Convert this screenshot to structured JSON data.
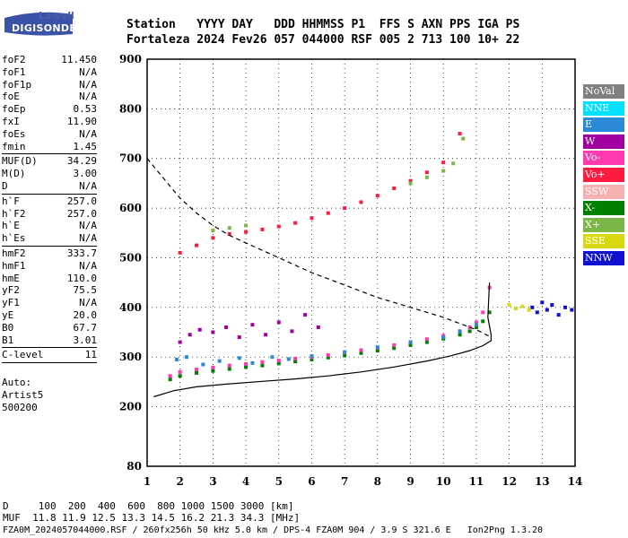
{
  "logo": {
    "top": "Lowell",
    "main": "DIGISONDE"
  },
  "header": {
    "line1": "Station   YYYY DAY   DDD HHMMSS P1  FFS S AXN PPS IGA PS",
    "line2": "Fortaleza 2024 Fev26 057 044000 RSF 005 2 713 100 10+ 22"
  },
  "params": [
    {
      "k": "foF2",
      "v": "11.450"
    },
    {
      "k": "foF1",
      "v": "N/A"
    },
    {
      "k": "foF1p",
      "v": "N/A"
    },
    {
      "k": "foE",
      "v": "N/A"
    },
    {
      "k": "foEp",
      "v": "0.53"
    },
    {
      "k": "fxI",
      "v": "11.90"
    },
    {
      "k": "foEs",
      "v": "N/A"
    },
    {
      "k": "fmin",
      "v": "1.45"
    },
    {
      "k": "MUF(D)",
      "v": "34.29"
    },
    {
      "k": "M(D)",
      "v": "3.00"
    },
    {
      "k": "D",
      "v": "N/A"
    },
    {
      "k": "h`F",
      "v": "257.0"
    },
    {
      "k": "h`F2",
      "v": "257.0"
    },
    {
      "k": "h`E",
      "v": "N/A"
    },
    {
      "k": "h`Es",
      "v": "N/A"
    },
    {
      "k": "hmF2",
      "v": "333.7"
    },
    {
      "k": "hmF1",
      "v": "N/A"
    },
    {
      "k": "hmE",
      "v": "110.0"
    },
    {
      "k": "yF2",
      "v": "75.5"
    },
    {
      "k": "yF1",
      "v": "N/A"
    },
    {
      "k": "yE",
      "v": "20.0"
    },
    {
      "k": "B0",
      "v": "67.7"
    },
    {
      "k": "B1",
      "v": "3.01"
    },
    {
      "k": "C-level",
      "v": "11"
    }
  ],
  "autoscale": {
    "line1": "Auto:",
    "line2": "Artist5",
    "line3": "500200"
  },
  "footer": {
    "d_line": "D     100  200  400  600  800 1000 1500 3000 [km]",
    "muf_line": "MUF  11.8 11.9 12.5 13.3 14.5 16.2 21.3 34.3 [MHz]",
    "info_line": "FZA0M_2024057044000.RSF / 260fx256h 50 kHz 5.0 km / DPS-4 FZA0M 904 / 3.9 S 321.6 E   Ion2Png 1.3.20"
  },
  "legend": [
    {
      "label": "NoVal",
      "color": "#808080"
    },
    {
      "label": "NNE",
      "color": "#00e0ff"
    },
    {
      "label": "E",
      "color": "#2a8ad8"
    },
    {
      "label": "W",
      "color": "#a000a0"
    },
    {
      "label": "Vo-",
      "color": "#ff3ab0"
    },
    {
      "label": "Vo+",
      "color": "#ff1a40"
    },
    {
      "label": "SSW",
      "color": "#f5b0b0"
    },
    {
      "label": "X-",
      "color": "#008000"
    },
    {
      "label": "X+",
      "color": "#7ab648"
    },
    {
      "label": "SSE",
      "color": "#d8d810"
    },
    {
      "label": "NNW",
      "color": "#1010d0"
    }
  ],
  "chart_data": {
    "type": "scatter",
    "title": "",
    "xlabel": "",
    "ylabel": "",
    "xlim": [
      1,
      14
    ],
    "ylim": [
      80,
      900
    ],
    "xticks": [
      1,
      2,
      3,
      4,
      5,
      6,
      7,
      8,
      9,
      10,
      11,
      12,
      13,
      14
    ],
    "yticks": [
      80,
      200,
      300,
      400,
      500,
      600,
      700,
      800,
      900
    ],
    "grid": true,
    "legend_position": "right",
    "series": [
      {
        "name": "X-",
        "color": "#008000",
        "x": [
          1.7,
          2.0,
          2.5,
          3.0,
          3.5,
          4.0,
          4.5,
          5.0,
          5.5,
          6.0,
          6.5,
          7.0,
          7.5,
          8.0,
          8.5,
          9.0,
          9.5,
          10.0,
          10.5,
          10.8,
          11.0,
          11.2,
          11.4
        ],
        "y": [
          255,
          262,
          268,
          272,
          276,
          280,
          283,
          287,
          291,
          295,
          299,
          303,
          308,
          313,
          318,
          324,
          330,
          337,
          345,
          352,
          360,
          372,
          390
        ]
      },
      {
        "name": "Vo-",
        "color": "#ff3ab0",
        "x": [
          1.7,
          2.0,
          2.5,
          3.0,
          3.5,
          4.0,
          4.5,
          5.0,
          5.5,
          6.0,
          6.5,
          7.0,
          7.5,
          8.0,
          8.5,
          9.0,
          9.5,
          10.0,
          10.5,
          10.8,
          11.0,
          11.2,
          11.4
        ],
        "y": [
          262,
          270,
          275,
          279,
          283,
          286,
          290,
          293,
          297,
          300,
          304,
          309,
          314,
          319,
          324,
          330,
          336,
          343,
          352,
          360,
          370,
          390,
          440
        ]
      },
      {
        "name": "W",
        "color": "#a000a0",
        "x": [
          2.0,
          2.3,
          2.6,
          3.0,
          3.4,
          3.8,
          4.2,
          4.6,
          5.0,
          5.4,
          5.8,
          6.2
        ],
        "y": [
          330,
          345,
          355,
          350,
          360,
          340,
          365,
          345,
          370,
          352,
          385,
          360
        ]
      },
      {
        "name": "Vo+",
        "color": "#ff1a40",
        "x": [
          2.0,
          2.5,
          3.0,
          3.5,
          4.0,
          4.5,
          5.0,
          5.5,
          6.0,
          6.5,
          7.0,
          7.5,
          8.0,
          8.5,
          9.0,
          9.5,
          10.0,
          10.5
        ],
        "y": [
          510,
          525,
          540,
          548,
          552,
          557,
          563,
          570,
          580,
          590,
          600,
          612,
          625,
          640,
          655,
          672,
          692,
          750
        ]
      },
      {
        "name": "E",
        "color": "#2a8ad8",
        "x": [
          1.9,
          2.2,
          2.7,
          3.2,
          3.8,
          4.2,
          4.8,
          5.3,
          6.0,
          7.0,
          8.0,
          9.0,
          10.0,
          10.5,
          11.0
        ],
        "y": [
          295,
          300,
          285,
          292,
          298,
          288,
          300,
          296,
          302,
          310,
          320,
          330,
          340,
          352,
          365
        ]
      },
      {
        "name": "NNW",
        "color": "#1010d0",
        "x": [
          12.7,
          12.85,
          13.0,
          13.15,
          13.3,
          13.5,
          13.7,
          13.9
        ],
        "y": [
          400,
          390,
          410,
          395,
          405,
          385,
          400,
          395
        ]
      },
      {
        "name": "SSE",
        "color": "#d8d810",
        "x": [
          12.0,
          12.2,
          12.4,
          12.6
        ],
        "y": [
          405,
          398,
          402,
          395
        ]
      },
      {
        "name": "X+",
        "color": "#7ab648",
        "x": [
          3.0,
          3.5,
          4.0,
          9.0,
          9.5,
          10.0,
          10.3,
          10.6
        ],
        "y": [
          555,
          560,
          565,
          650,
          662,
          675,
          690,
          740
        ]
      }
    ],
    "curves": [
      {
        "name": "profile",
        "style": "solid",
        "x": [
          1.2,
          1.8,
          2.5,
          3.5,
          4.5,
          5.5,
          6.5,
          7.5,
          8.5,
          9.5,
          10.2,
          10.8,
          11.2,
          11.45,
          11.45,
          11.35,
          11.4
        ],
        "y": [
          220,
          232,
          240,
          246,
          251,
          256,
          262,
          270,
          280,
          292,
          302,
          313,
          323,
          333,
          345,
          380,
          450
        ]
      },
      {
        "name": "MUF",
        "style": "dashed",
        "x": [
          1.0,
          1.5,
          2.0,
          2.5,
          3.0,
          3.5,
          4.0,
          4.5,
          5.0,
          6.0,
          7.0,
          8.0,
          9.0,
          10.0,
          11.0,
          11.45
        ],
        "y": [
          700,
          660,
          620,
          590,
          565,
          545,
          530,
          515,
          500,
          470,
          445,
          420,
          400,
          380,
          355,
          340
        ]
      }
    ]
  }
}
